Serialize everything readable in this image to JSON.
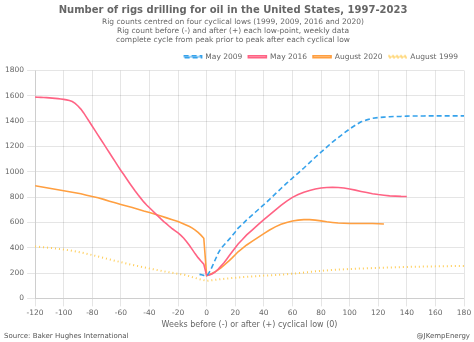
{
  "chart_data": {
    "type": "line",
    "title": "Number of rigs drilling for oil in the United States, 1997-2023",
    "subtitle": [
      "Rig counts centred on four cyclical lows (1999, 2009, 2016 and 2020)",
      "Rig count before (-) and after (+) each low-point, weekly data",
      "complete cycle from peak prior to peak after each cyclical low"
    ],
    "xlabel": "Weeks before (-) or after (+) cyclical low (0)",
    "annotations": [
      "Source: Baker Hughes International",
      "@JKempEnergy"
    ],
    "xlim": [
      -120,
      180
    ],
    "ylim": [
      0,
      1800
    ],
    "xticks": [
      -120,
      -100,
      -80,
      -60,
      -40,
      -20,
      0,
      20,
      40,
      60,
      80,
      100,
      120,
      140,
      160,
      180
    ],
    "yticks": [
      0,
      200,
      400,
      600,
      800,
      1000,
      1200,
      1400,
      1600,
      1800
    ],
    "grid": true,
    "legend": "upper right",
    "series": [
      {
        "name": "May 2009",
        "line_style": "dashed",
        "x": [
          -5,
          -4,
          -3,
          -2,
          -1,
          0,
          1,
          2,
          3,
          4,
          5,
          6,
          7,
          8,
          9,
          10,
          12,
          14,
          16,
          18,
          20,
          22,
          25,
          28,
          32,
          36,
          40,
          44,
          48,
          52,
          56,
          60,
          64,
          68,
          72,
          76,
          80,
          84,
          88,
          92,
          96,
          100,
          104,
          108,
          112,
          116,
          120,
          124,
          128,
          132,
          136,
          140,
          144,
          148,
          152,
          156,
          160,
          164,
          168,
          172,
          176,
          180
        ],
        "values": [
          190,
          188,
          185,
          182,
          180,
          178,
          190,
          210,
          230,
          255,
          280,
          305,
          330,
          355,
          375,
          395,
          420,
          445,
          470,
          498,
          525,
          555,
          585,
          620,
          660,
          700,
          740,
          782,
          825,
          868,
          910,
          950,
          990,
          1030,
          1072,
          1115,
          1155,
          1195,
          1235,
          1270,
          1305,
          1338,
          1368,
          1395,
          1410,
          1422,
          1428,
          1432,
          1435,
          1437,
          1438,
          1440,
          1441,
          1441,
          1441,
          1442,
          1442,
          1442,
          1442,
          1442,
          1442,
          1442
        ]
      },
      {
        "name": "May 2016",
        "line_style": "solid",
        "x": [
          -120,
          -118,
          -116,
          -114,
          -112,
          -110,
          -108,
          -106,
          -104,
          -102,
          -100,
          -98,
          -96,
          -94,
          -92,
          -90,
          -88,
          -86,
          -84,
          -82,
          -80,
          -78,
          -76,
          -74,
          -72,
          -70,
          -68,
          -66,
          -64,
          -62,
          -60,
          -58,
          -56,
          -54,
          -52,
          -50,
          -48,
          -46,
          -44,
          -42,
          -40,
          -38,
          -36,
          -34,
          -32,
          -30,
          -28,
          -26,
          -24,
          -22,
          -20,
          -18,
          -16,
          -14,
          -12,
          -10,
          -8,
          -6,
          -4,
          -2,
          0,
          2,
          4,
          6,
          8,
          10,
          12,
          14,
          16,
          18,
          20,
          22,
          25,
          28,
          32,
          36,
          40,
          44,
          48,
          52,
          56,
          60,
          64,
          68,
          72,
          76,
          80,
          84,
          88,
          92,
          96,
          100,
          104,
          108,
          112,
          116,
          120,
          124,
          128,
          132,
          136,
          140
        ],
        "values": [
          1590,
          1589,
          1588,
          1587,
          1586,
          1584,
          1582,
          1580,
          1578,
          1575,
          1572,
          1568,
          1563,
          1555,
          1540,
          1520,
          1495,
          1465,
          1430,
          1395,
          1360,
          1325,
          1290,
          1255,
          1220,
          1185,
          1150,
          1115,
          1080,
          1045,
          1010,
          978,
          945,
          912,
          880,
          848,
          818,
          790,
          762,
          738,
          716,
          694,
          672,
          650,
          628,
          607,
          588,
          568,
          550,
          534,
          518,
          498,
          475,
          448,
          418,
          385,
          352,
          322,
          295,
          270,
          180,
          185,
          195,
          210,
          230,
          255,
          280,
          310,
          340,
          370,
          400,
          430,
          465,
          502,
          542,
          582,
          622,
          660,
          698,
          735,
          768,
          798,
          820,
          838,
          852,
          864,
          872,
          876,
          878,
          876,
          872,
          864,
          855,
          845,
          836,
          827,
          820,
          815,
          810,
          808,
          806,
          805
        ]
      },
      {
        "name": "August 2020",
        "line_style": "solid",
        "x": [
          -120,
          -116,
          -112,
          -108,
          -104,
          -100,
          -96,
          -92,
          -88,
          -84,
          -80,
          -76,
          -72,
          -68,
          -64,
          -60,
          -56,
          -52,
          -48,
          -44,
          -40,
          -36,
          -32,
          -28,
          -24,
          -20,
          -18,
          -16,
          -14,
          -12,
          -10,
          -8,
          -6,
          -4,
          -2,
          0,
          2,
          4,
          6,
          8,
          10,
          12,
          14,
          16,
          18,
          20,
          22,
          25,
          28,
          32,
          36,
          40,
          44,
          48,
          52,
          56,
          60,
          64,
          68,
          72,
          76,
          80,
          84,
          88,
          92,
          96,
          100,
          104,
          108,
          112,
          116,
          120,
          124
        ],
        "values": [
          890,
          882,
          874,
          866,
          858,
          850,
          842,
          834,
          826,
          815,
          805,
          795,
          782,
          768,
          755,
          742,
          730,
          718,
          704,
          690,
          678,
          665,
          650,
          636,
          622,
          608,
          598,
          588,
          578,
          568,
          555,
          540,
          522,
          500,
          475,
          180,
          188,
          198,
          210,
          225,
          242,
          260,
          280,
          300,
          322,
          345,
          368,
          395,
          422,
          452,
          482,
          512,
          540,
          565,
          585,
          600,
          612,
          618,
          622,
          622,
          618,
          612,
          605,
          600,
          596,
          594,
          592,
          592,
          592,
          592,
          592,
          590,
          588
        ]
      },
      {
        "name": "August 1999",
        "line_style": "dotted",
        "x": [
          -120,
          -115,
          -110,
          -105,
          -100,
          -95,
          -90,
          -85,
          -80,
          -75,
          -70,
          -65,
          -60,
          -55,
          -50,
          -45,
          -40,
          -35,
          -30,
          -25,
          -20,
          -15,
          -10,
          -5,
          0,
          5,
          10,
          15,
          20,
          25,
          30,
          35,
          40,
          45,
          50,
          55,
          60,
          65,
          70,
          75,
          80,
          85,
          90,
          95,
          100,
          105,
          110,
          115,
          120,
          125,
          130,
          135,
          140,
          145,
          150,
          155,
          160,
          165,
          170,
          175,
          180
        ],
        "values": [
          410,
          405,
          400,
          393,
          386,
          378,
          368,
          356,
          342,
          328,
          314,
          300,
          286,
          272,
          260,
          248,
          236,
          225,
          214,
          204,
          194,
          185,
          168,
          152,
          138,
          145,
          152,
          158,
          163,
          168,
          172,
          176,
          180,
          183,
          186,
          190,
          195,
          200,
          206,
          213,
          218,
          222,
          226,
          229,
          232,
          235,
          237,
          239,
          241,
          243,
          245,
          247,
          248,
          250,
          251,
          252,
          253,
          254,
          255,
          256,
          256
        ]
      }
    ]
  }
}
